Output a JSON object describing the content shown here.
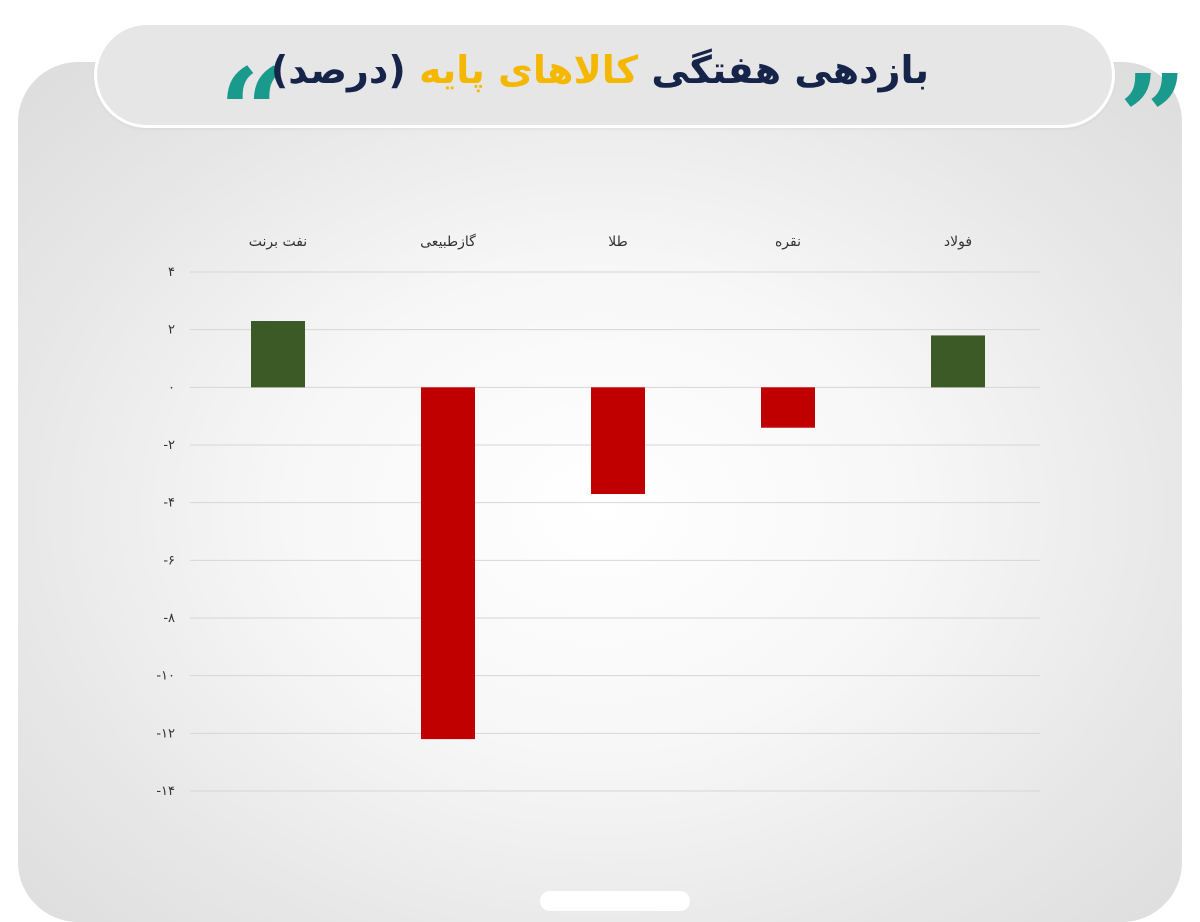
{
  "header": {
    "title_part1": "بازدهی هفتگی",
    "title_highlight": "کالاهای پایه",
    "title_part2": "(درصد)",
    "quote_open_icon": "double-quote-open-icon",
    "quote_close_icon": "double-quote-close-icon",
    "accent_color": "#1a9a8c",
    "highlight_color": "#f5b800",
    "title_color": "#16244a"
  },
  "chart_data": {
    "type": "bar",
    "categories": [
      "فولاد",
      "نقره",
      "طلا",
      "گازطبیعی",
      "نفت برنت"
    ],
    "values": [
      1.8,
      -1.4,
      -3.7,
      -12.2,
      2.3
    ],
    "tick_labels": [
      "۴",
      "۲",
      "۰",
      "-۲",
      "-۴",
      "-۶",
      "-۸",
      "-۱۰",
      "-۱۲",
      "-۱۴"
    ],
    "ylim": [
      -14,
      4
    ],
    "ticks": [
      4,
      2,
      0,
      -2,
      -4,
      -6,
      -8,
      -10,
      -12,
      -14
    ],
    "grid": true,
    "category_axis_position": "top",
    "positive_color": "#3c5a25",
    "negative_color": "#c00000"
  }
}
